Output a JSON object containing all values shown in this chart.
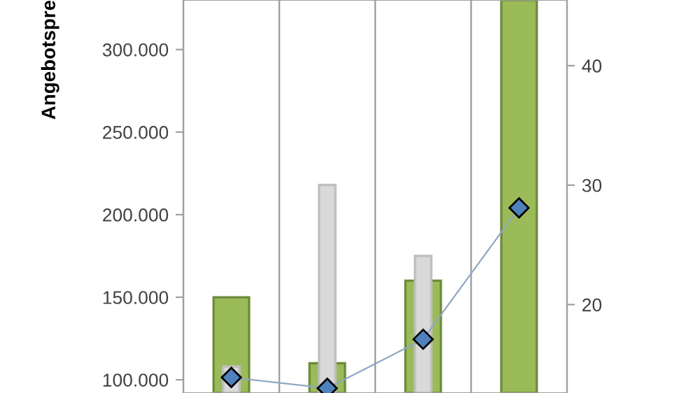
{
  "chart_data": {
    "type": "bar",
    "ylabel": "Angebotspre",
    "categories": [
      null,
      null,
      null,
      null
    ],
    "series": [
      {
        "color": "#9bbb59",
        "values": [
          150000,
          110000,
          160000,
          330000
        ]
      },
      {
        "color": "#d9d9d9",
        "values": [
          108000,
          218000,
          175000,
          null
        ]
      },
      {
        "type": "line",
        "axis": "y2",
        "color": "#4f81bd",
        "values": [
          13.9,
          13.0,
          17.1,
          28.1
        ]
      }
    ],
    "ylim": [
      92000,
      330000
    ],
    "yticks": [
      {
        "value": 100000,
        "label": "100.000"
      },
      {
        "value": 150000,
        "label": "150.000"
      },
      {
        "value": 200000,
        "label": "200.000"
      },
      {
        "value": 250000,
        "label": "250.000"
      },
      {
        "value": 300000,
        "label": "300.000"
      }
    ],
    "y2lim": [
      12.6,
      45.5
    ],
    "y2ticks": [
      20,
      30,
      40
    ],
    "grid": "x",
    "marker": "diamond",
    "line_style": "solid"
  }
}
